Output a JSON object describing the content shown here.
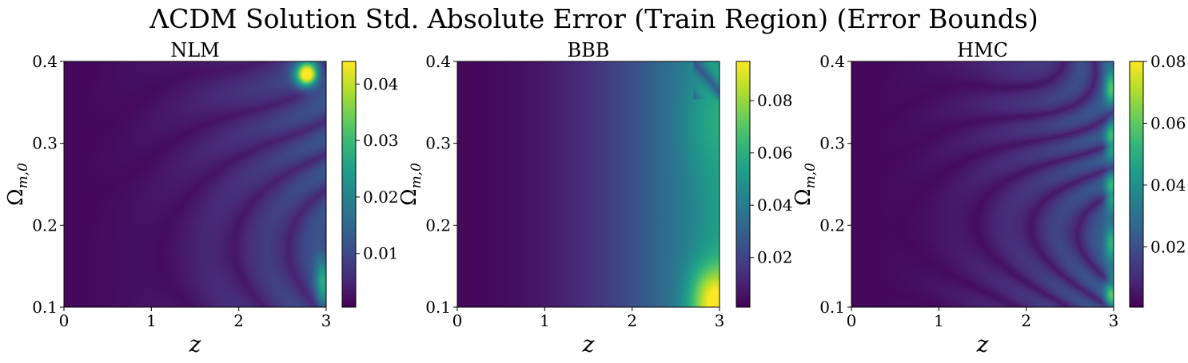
{
  "suptitle": "ΛCDM Solution Std. Absolute Error (Train Region) (Error Bounds)",
  "colors": {
    "colormap": "viridis",
    "viridis_stops": [
      "#440154",
      "#482878",
      "#3e4989",
      "#31688e",
      "#26828e",
      "#1f9e89",
      "#35b779",
      "#6ece58",
      "#b5de2b",
      "#fde725"
    ],
    "frame": "#000000"
  },
  "chart_data": [
    {
      "type": "heatmap",
      "title": "NLM",
      "xlabel": "z",
      "ylabel": "Ωm,0",
      "ylabel_main": "Ω",
      "ylabel_sub": "m,0",
      "xlim": [
        0,
        3
      ],
      "ylim": [
        0.1,
        0.4
      ],
      "xticks": [
        "0",
        "1",
        "2",
        "3"
      ],
      "yticks": [
        "0.1",
        "0.2",
        "0.3",
        "0.4"
      ],
      "colorbar_range": [
        0.0005,
        0.044
      ],
      "colorbar_ticks": [
        "0.01",
        "0.02",
        "0.03",
        "0.04"
      ],
      "grid": false,
      "pattern": "low error over most of the domain with oscillatory ring-shaped contours increasing toward large z; peak near z≈2.9, Ωm,0≈0.39"
    },
    {
      "type": "heatmap",
      "title": "BBB",
      "xlabel": "z",
      "ylabel": "Ωm,0",
      "ylabel_main": "Ω",
      "ylabel_sub": "m,0",
      "xlim": [
        0,
        3
      ],
      "ylim": [
        0.1,
        0.4
      ],
      "xticks": [
        "0",
        "1",
        "2",
        "3"
      ],
      "yticks": [
        "0.1",
        "0.2",
        "0.3",
        "0.4"
      ],
      "colorbar_range": [
        0.001,
        0.095
      ],
      "colorbar_ticks": [
        "0.02",
        "0.04",
        "0.06",
        "0.08"
      ],
      "grid": false,
      "pattern": "smooth error increasing with z; maximum near z≈3, Ωm,0≈0.1"
    },
    {
      "type": "heatmap",
      "title": "HMC",
      "xlabel": "z",
      "ylabel": "Ωm,0",
      "ylabel_main": "Ω",
      "ylabel_sub": "m,0",
      "xlim": [
        0,
        3
      ],
      "ylim": [
        0.1,
        0.4
      ],
      "xticks": [
        "0",
        "1",
        "2",
        "3"
      ],
      "yticks": [
        "0.1",
        "0.2",
        "0.3",
        "0.4"
      ],
      "colorbar_range": [
        0.0005,
        0.08
      ],
      "colorbar_ticks": [
        "0.02",
        "0.04",
        "0.06",
        "0.08"
      ],
      "grid": false,
      "pattern": "low error with oscillatory ring-shaped contours increasing toward large z; brightest near z≈3"
    }
  ]
}
